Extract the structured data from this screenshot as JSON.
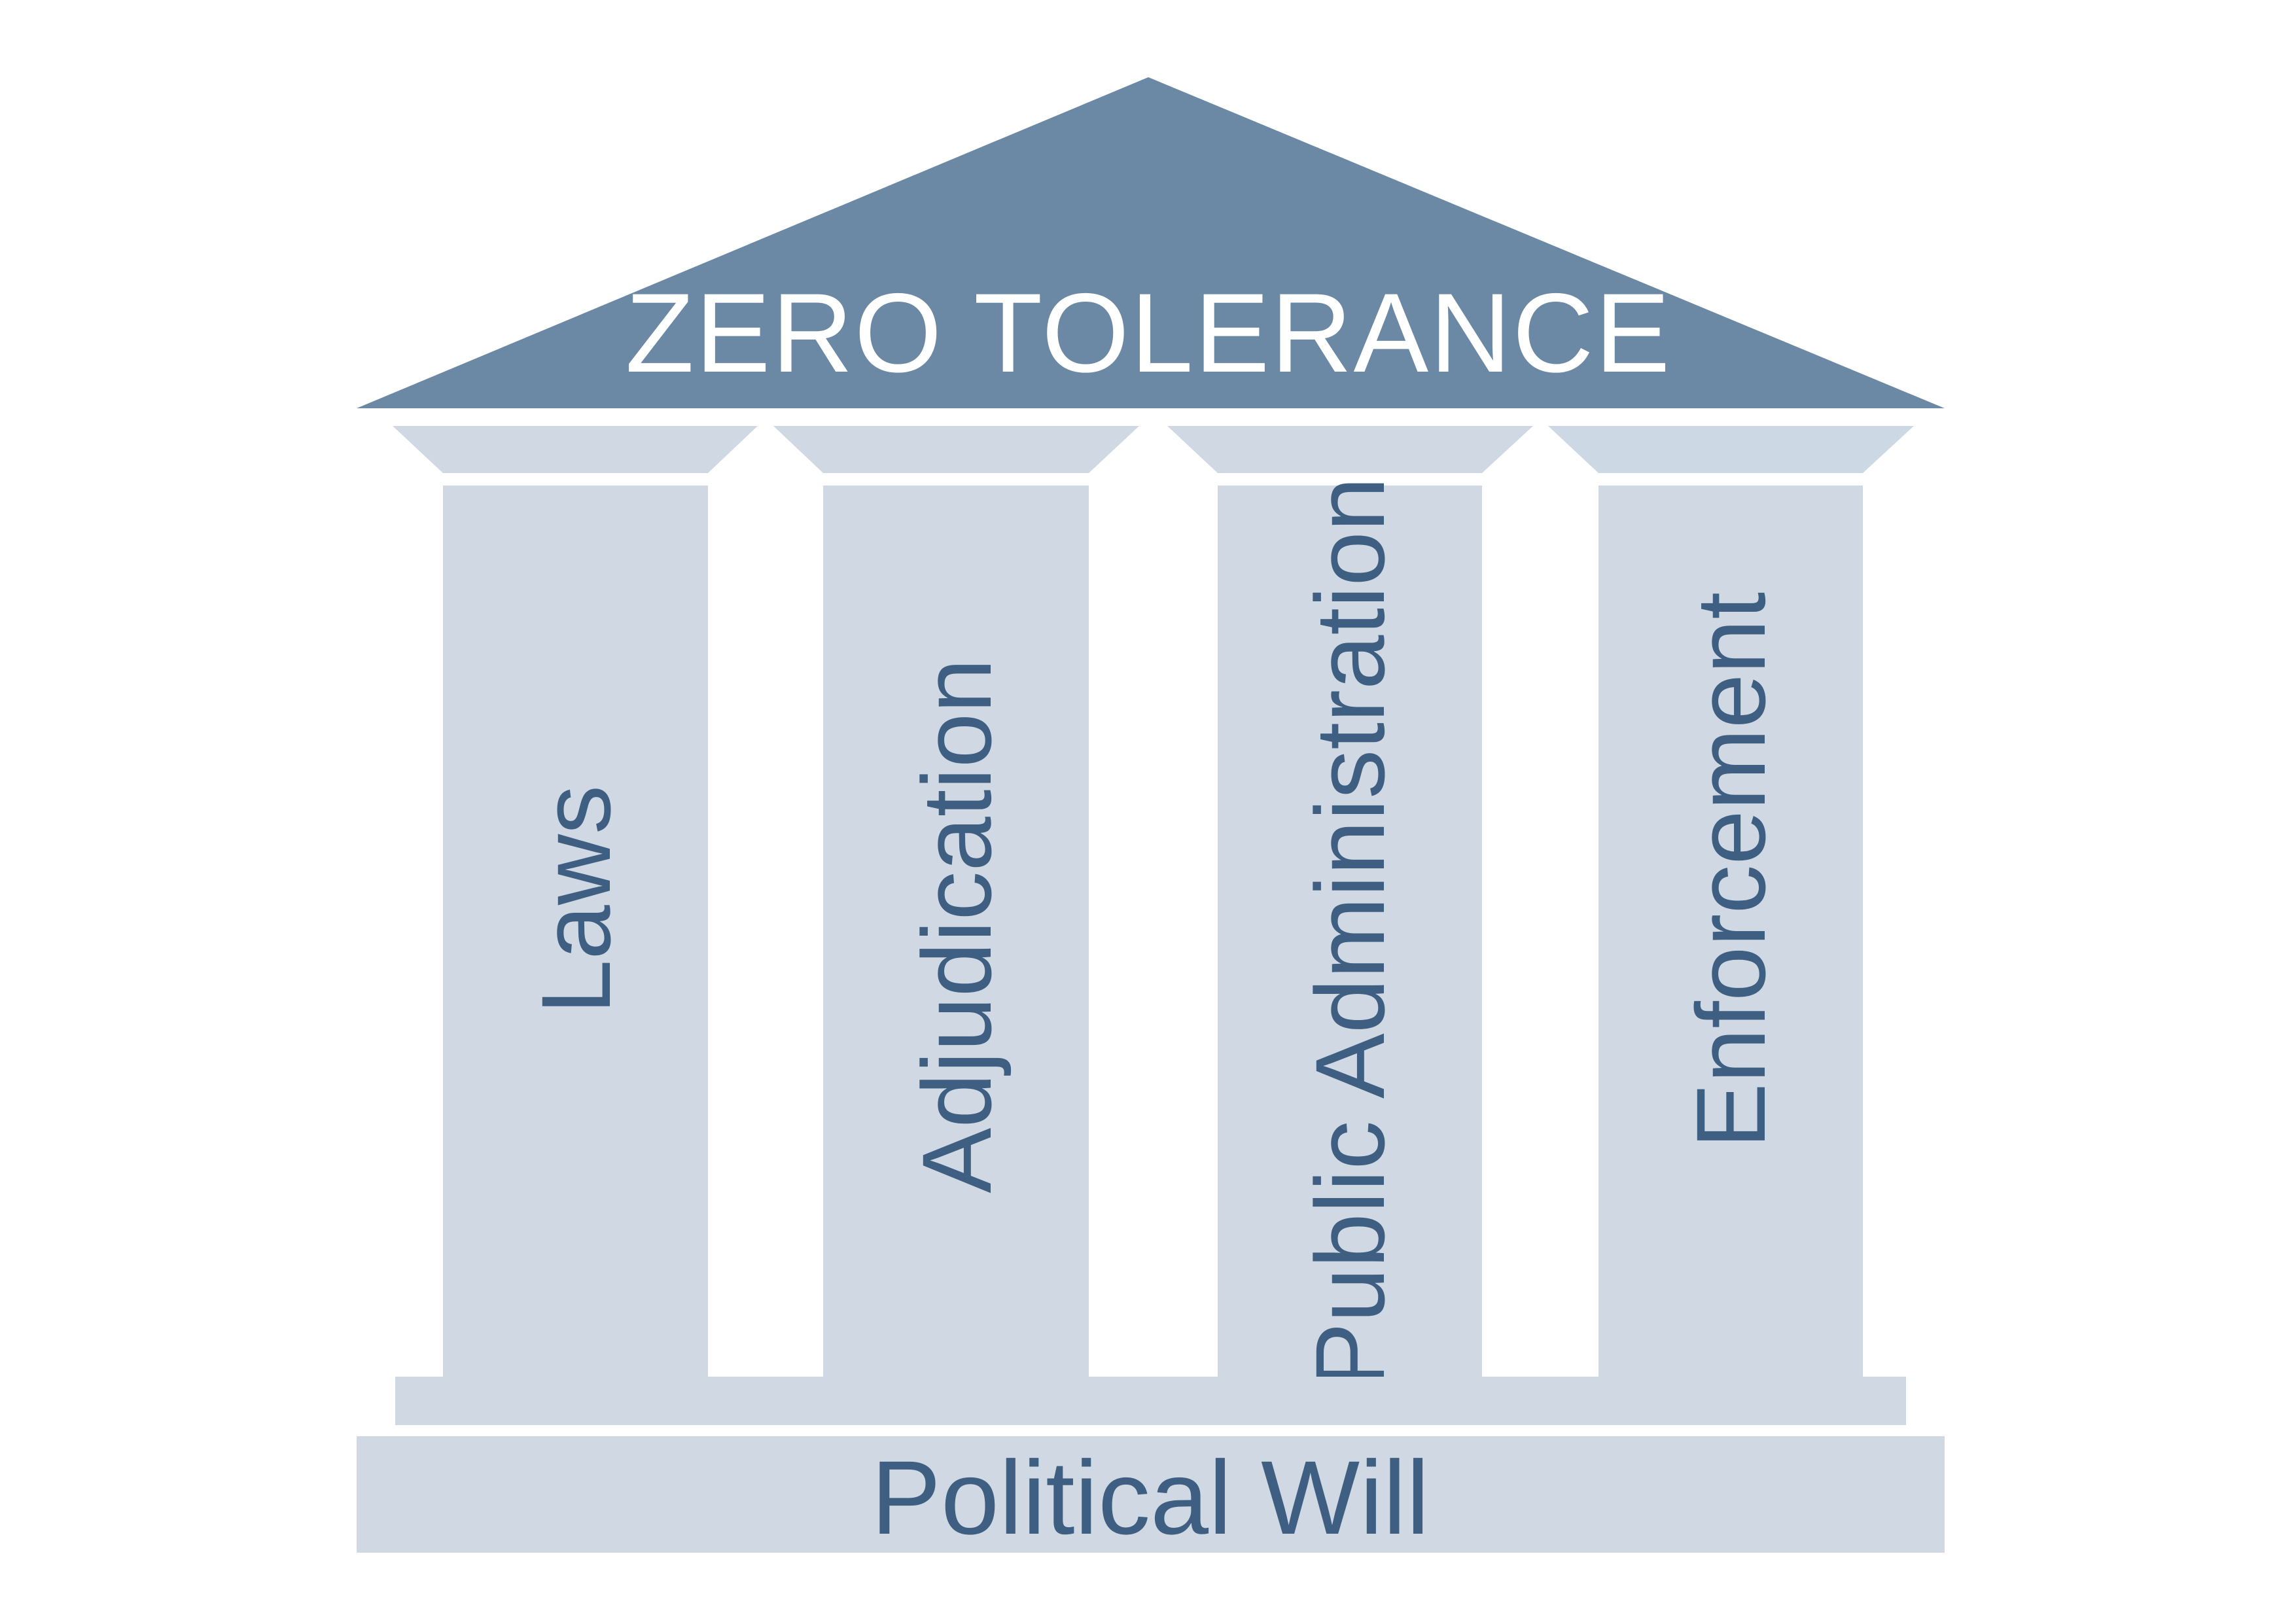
{
  "roof": {
    "title": "ZERO TOLERANCE",
    "color": "#6b88a4"
  },
  "pillars": [
    {
      "label": "Laws"
    },
    {
      "label": "Adjudication"
    },
    {
      "label": "Public Administration"
    },
    {
      "label": "Enforcement"
    }
  ],
  "foundation": {
    "label": "Political Will"
  },
  "colors": {
    "pillar_fill": "#d0d9e3",
    "capital_fill": "#d0d9e3",
    "text_dark": "#3f5f82",
    "text_light": "#ffffff"
  }
}
